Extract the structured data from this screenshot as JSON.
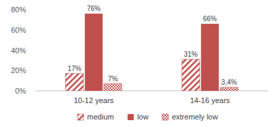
{
  "chart_data": {
    "type": "bar",
    "categories": [
      "10-12 years",
      "14-16 years"
    ],
    "series": [
      {
        "name": "medium",
        "color": "#c0504d",
        "values": [
          17,
          31
        ],
        "value_labels": [
          "17%",
          "31%"
        ]
      },
      {
        "name": "low",
        "color": "#c0504d",
        "values": [
          76,
          66
        ],
        "value_labels": [
          "76%",
          "66%"
        ]
      },
      {
        "name": "extremely low",
        "color": "#c0504d",
        "values": [
          7,
          3.4
        ],
        "value_labels": [
          "7%",
          "3,4%"
        ]
      }
    ],
    "ylim": [
      0,
      80
    ],
    "yticks": [
      {
        "value": 0,
        "label": "0%"
      },
      {
        "value": 20,
        "label": "20%"
      },
      {
        "value": 40,
        "label": "40%"
      },
      {
        "value": 60,
        "label": "60%"
      },
      {
        "value": 80,
        "label": "80%"
      }
    ],
    "grid": false,
    "data_labels": true,
    "legend": "bottom"
  }
}
